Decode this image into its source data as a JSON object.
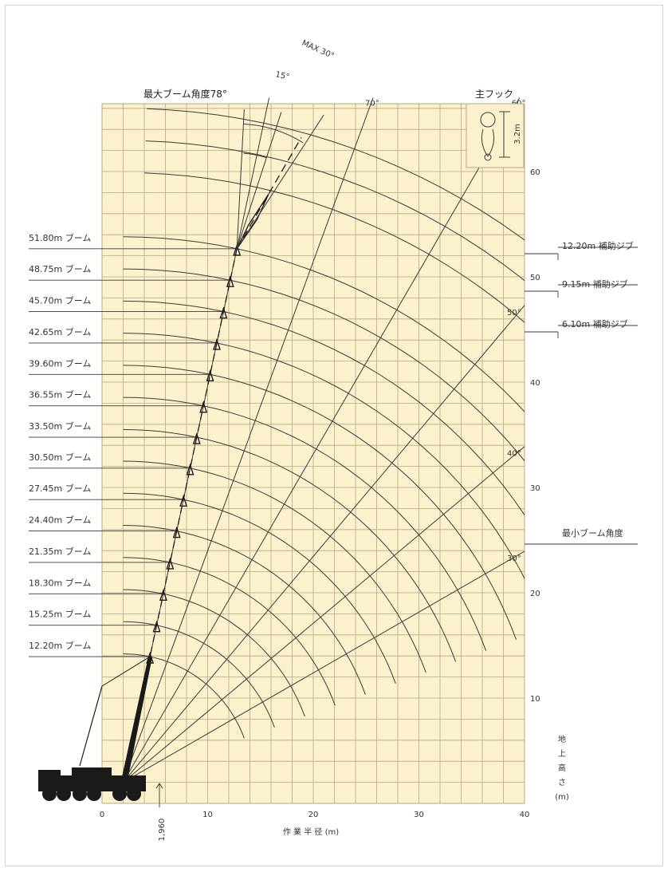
{
  "chart_data": {
    "type": "range-diagram",
    "x_axis": {
      "label": "作 業 半 径 (m)",
      "ticks": [
        0,
        10,
        20,
        30,
        40
      ],
      "range": [
        -6,
        40
      ]
    },
    "y_axis": {
      "label_chars": [
        "地",
        "上",
        "高",
        "さ",
        "(m)"
      ],
      "ticks": [
        10,
        20,
        30,
        40,
        50,
        60
      ],
      "range": [
        0,
        66
      ]
    },
    "grid": true,
    "pivot_offset_label": "1,960",
    "boom_lengths": [
      {
        "label": "12.20m ブーム",
        "length": 12.2
      },
      {
        "label": "15.25m ブーム",
        "length": 15.25
      },
      {
        "label": "18.30m ブーム",
        "length": 18.3
      },
      {
        "label": "21.35m ブーム",
        "length": 21.35
      },
      {
        "label": "24.40m ブーム",
        "length": 24.4
      },
      {
        "label": "27.45m ブーム",
        "length": 27.45
      },
      {
        "label": "30.50m ブーム",
        "length": 30.5
      },
      {
        "label": "33.50m ブーム",
        "length": 33.5
      },
      {
        "label": "36.55m ブーム",
        "length": 36.55
      },
      {
        "label": "39.60m ブーム",
        "length": 39.6
      },
      {
        "label": "42.65m ブーム",
        "length": 42.65
      },
      {
        "label": "45.70m ブーム",
        "length": 45.7
      },
      {
        "label": "48.75m ブーム",
        "length": 48.75
      },
      {
        "label": "51.80m ブーム",
        "length": 51.8
      }
    ],
    "jibs": [
      {
        "label": "12.20m 補助ジブ",
        "length": 12.2
      },
      {
        "label": "9.15m 補助ジブ",
        "length": 9.15
      },
      {
        "label": "6.10m 補助ジブ",
        "length": 6.1
      }
    ],
    "angle_lines": [
      {
        "label": "30°",
        "deg": 30
      },
      {
        "label": "40°",
        "deg": 40
      },
      {
        "label": "50°",
        "deg": 50
      },
      {
        "label": "60°",
        "deg": 60
      },
      {
        "label": "70°",
        "deg": 70
      },
      {
        "label": "",
        "deg": 78
      }
    ],
    "max_boom_angle_label": "最大ブーム角度78°",
    "min_boom_angle_label": "最小ブーム角度",
    "jib_offset_small": "15°",
    "jib_offset_max": "MAX 30°",
    "main_hook_label": "主フック",
    "hook_dimension": "3.2m"
  },
  "colors": {
    "paper": "#fbf1cc",
    "grid": "#b6a886",
    "line": "#3a3a3a",
    "boom": "#1a1a1a"
  }
}
